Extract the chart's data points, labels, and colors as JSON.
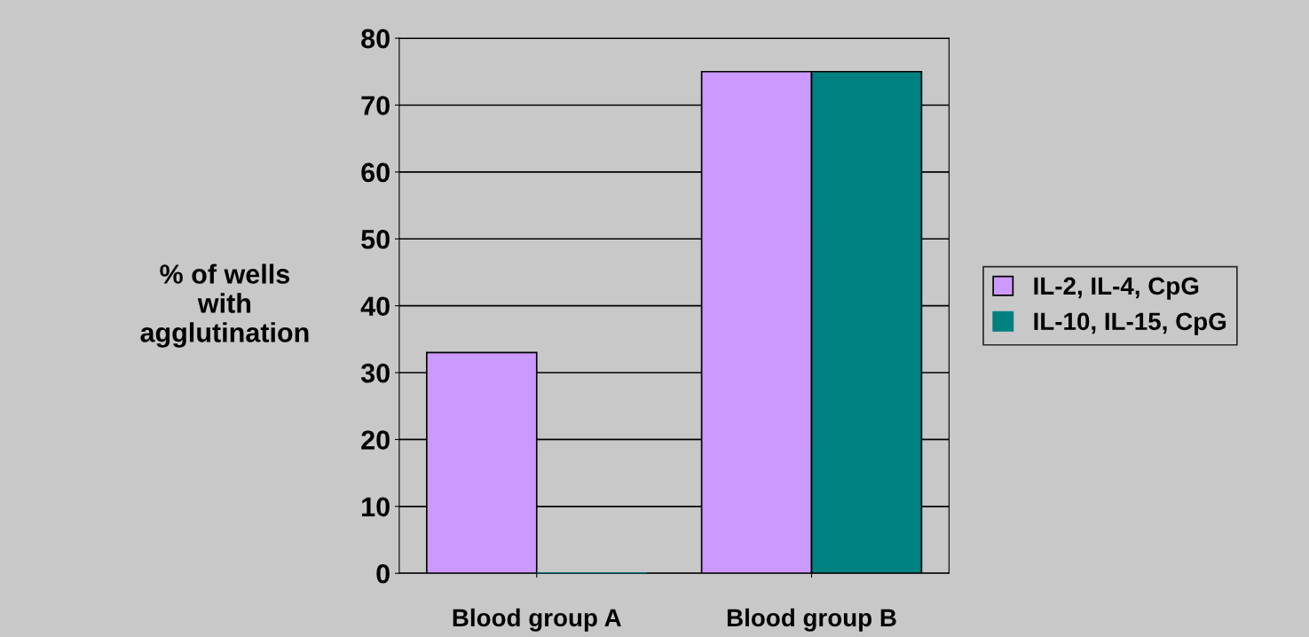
{
  "chart_data": {
    "type": "bar",
    "ylabel": "% of wells\nwith\nagglutination",
    "categories": [
      "Blood group A",
      "Blood group B"
    ],
    "series": [
      {
        "name": "IL-2, IL-4, CpG",
        "color": "#cc99ff",
        "values": [
          33,
          75
        ]
      },
      {
        "name": "IL-10, IL-15, CpG",
        "color": "#008080",
        "values": [
          0,
          75
        ]
      }
    ],
    "ylim": [
      0,
      80
    ],
    "yticks": [
      0,
      10,
      20,
      30,
      40,
      50,
      60,
      70,
      80
    ],
    "grid": "y",
    "legend": "right"
  }
}
